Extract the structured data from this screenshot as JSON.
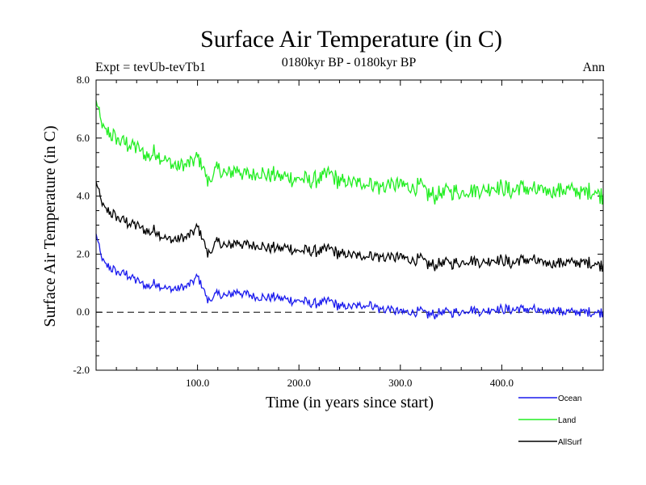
{
  "chart_data": {
    "type": "line",
    "title": "Surface Air Temperature (in C)",
    "subtitle_left": "Expt = tevUb-tevTb1",
    "subtitle_center": "0180kyr BP - 0180kyr BP",
    "subtitle_right": "Ann",
    "xlabel": "Time (in years since start)",
    "ylabel": "Surface Air Temperature (in C)",
    "xlim": [
      0,
      500
    ],
    "ylim": [
      -2.0,
      8.0
    ],
    "x_ticks": [
      100,
      200,
      300,
      400
    ],
    "x_tick_labels": [
      "100.0",
      "200.0",
      "300.0",
      "400.0"
    ],
    "y_ticks": [
      -2,
      0,
      2,
      4,
      6,
      8
    ],
    "y_tick_labels": [
      "-2.0",
      "0.0",
      "2.0",
      "4.0",
      "6.0",
      "8.0"
    ],
    "reference_line": {
      "y": 0.0,
      "style": "dashed"
    },
    "x": [
      0,
      5,
      10,
      20,
      30,
      40,
      50,
      60,
      70,
      80,
      90,
      100,
      105,
      110,
      120,
      130,
      140,
      150,
      160,
      170,
      180,
      190,
      200,
      210,
      220,
      230,
      240,
      250,
      260,
      270,
      280,
      290,
      300,
      310,
      320,
      330,
      340,
      350,
      360,
      370,
      380,
      390,
      400,
      410,
      420,
      430,
      440,
      450,
      460,
      470,
      480,
      490,
      500
    ],
    "series": [
      {
        "name": "Ocean",
        "color": "#1a1aee",
        "values": [
          2.7,
          1.9,
          1.6,
          1.4,
          1.3,
          1.1,
          0.9,
          1.0,
          0.8,
          0.8,
          0.9,
          1.2,
          0.9,
          0.4,
          0.6,
          0.6,
          0.7,
          0.6,
          0.5,
          0.5,
          0.5,
          0.4,
          0.4,
          0.3,
          0.3,
          0.4,
          0.2,
          0.2,
          0.2,
          0.3,
          0.1,
          0.1,
          0.0,
          0.0,
          0.0,
          -0.1,
          0.0,
          0.0,
          0.0,
          0.1,
          0.0,
          0.1,
          0.1,
          0.1,
          0.1,
          0.1,
          0.0,
          0.1,
          0.0,
          0.0,
          0.0,
          0.0,
          0.0
        ]
      },
      {
        "name": "Land",
        "color": "#22ee22",
        "values": [
          7.3,
          6.5,
          6.2,
          6.0,
          5.8,
          5.7,
          5.4,
          5.5,
          5.2,
          5.0,
          5.1,
          5.3,
          5.1,
          4.5,
          4.9,
          4.8,
          4.9,
          4.7,
          4.8,
          4.7,
          4.7,
          4.6,
          4.6,
          4.5,
          4.6,
          4.8,
          4.5,
          4.5,
          4.4,
          4.5,
          4.3,
          4.4,
          4.4,
          4.3,
          4.3,
          4.0,
          4.1,
          4.2,
          4.1,
          4.2,
          4.2,
          4.3,
          4.3,
          4.2,
          4.3,
          4.2,
          4.2,
          4.2,
          4.2,
          4.2,
          4.1,
          4.2,
          4.0
        ]
      },
      {
        "name": "AllSurf",
        "color": "#000000",
        "values": [
          4.5,
          3.8,
          3.5,
          3.3,
          3.1,
          3.0,
          2.8,
          2.8,
          2.5,
          2.5,
          2.6,
          2.9,
          2.6,
          2.0,
          2.4,
          2.3,
          2.4,
          2.3,
          2.3,
          2.2,
          2.2,
          2.2,
          2.1,
          2.1,
          2.1,
          2.2,
          2.0,
          2.0,
          1.9,
          2.0,
          1.9,
          1.9,
          1.9,
          1.8,
          1.8,
          1.6,
          1.7,
          1.7,
          1.7,
          1.8,
          1.7,
          1.8,
          1.8,
          1.7,
          1.8,
          1.8,
          1.7,
          1.7,
          1.7,
          1.7,
          1.7,
          1.7,
          1.6
        ]
      }
    ],
    "legend_position": "bottom-right"
  }
}
